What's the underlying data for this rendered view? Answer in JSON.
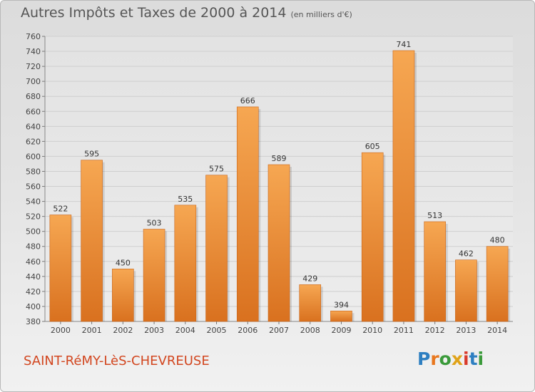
{
  "header": {
    "title": "Autres Impôts et Taxes de 2000 à 2014",
    "unit": "(en milliers d'€)"
  },
  "footer": {
    "commune": "SAINT-RéMY-LèS-CHEVREUSE",
    "logo_text": "Proxiti",
    "logo_colors": [
      "#2e7fc1",
      "#e8771e",
      "#3a9a3a",
      "#e0a319",
      "#d93a2b",
      "#2e7fc1",
      "#3a9a3a"
    ]
  },
  "colors": {
    "bar_light": "#f6a752",
    "bar_dark": "#d9711f",
    "grid": "#cfcfcf",
    "title": "#555555",
    "commune": "#d2461f"
  },
  "chart_data": {
    "type": "bar",
    "title": "Autres Impôts et Taxes de 2000 à 2014",
    "subtitle": "(en milliers d'€)",
    "categories": [
      "2000",
      "2001",
      "2002",
      "2003",
      "2004",
      "2005",
      "2006",
      "2007",
      "2008",
      "2009",
      "2010",
      "2011",
      "2012",
      "2013",
      "2014"
    ],
    "values": [
      522,
      595,
      450,
      503,
      535,
      575,
      666,
      589,
      429,
      394,
      605,
      741,
      513,
      462,
      480
    ],
    "data_labels": [
      "522",
      "595",
      "450",
      "503",
      "535",
      "575",
      "666",
      "589",
      "429",
      "394",
      "605",
      "741",
      "513",
      "462",
      "480"
    ],
    "ylim": [
      380,
      760
    ],
    "yticks": [
      380,
      400,
      420,
      440,
      460,
      480,
      500,
      520,
      540,
      560,
      580,
      600,
      620,
      640,
      660,
      680,
      700,
      720,
      740,
      760
    ],
    "grid": true,
    "legend": "none"
  }
}
